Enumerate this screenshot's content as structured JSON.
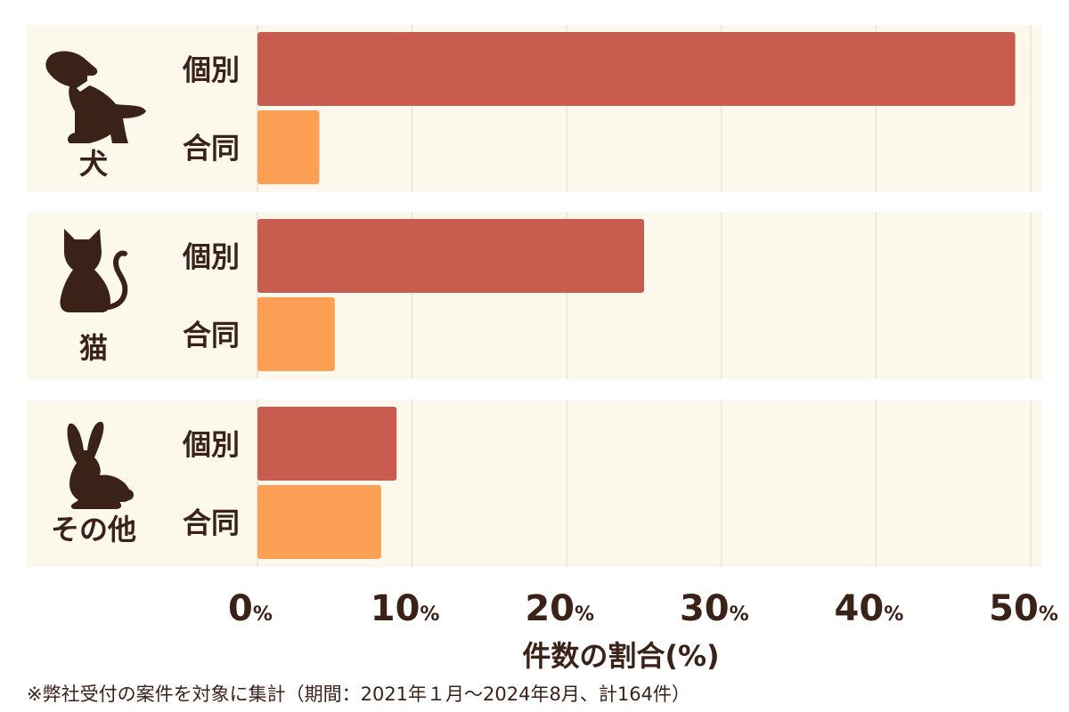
{
  "chart_data": {
    "type": "bar",
    "orientation": "horizontal",
    "categories": [
      "犬",
      "猫",
      "その他"
    ],
    "series": [
      {
        "name": "個別",
        "values": [
          49,
          25,
          9
        ]
      },
      {
        "name": "合同",
        "values": [
          4,
          5,
          8
        ]
      }
    ],
    "xlim": [
      0,
      50
    ],
    "x_ticks": [
      "0",
      "10",
      "20",
      "30",
      "40",
      "50"
    ],
    "x_tick_unit": "%",
    "xlabel": "件数の割合(%)",
    "grid": true,
    "legend": "none",
    "icons": [
      "dog-icon",
      "cat-icon",
      "rabbit-icon"
    ],
    "colors": {
      "individual": "#c85d4f",
      "joint": "#fda055",
      "panel_bg": "#fdf8ec",
      "text": "#3b2219",
      "grid": "#e5dfd2"
    }
  },
  "footnote": "※弊社受付の案件を対象に集計（期間：2021年１月～2024年8月、計164件）"
}
